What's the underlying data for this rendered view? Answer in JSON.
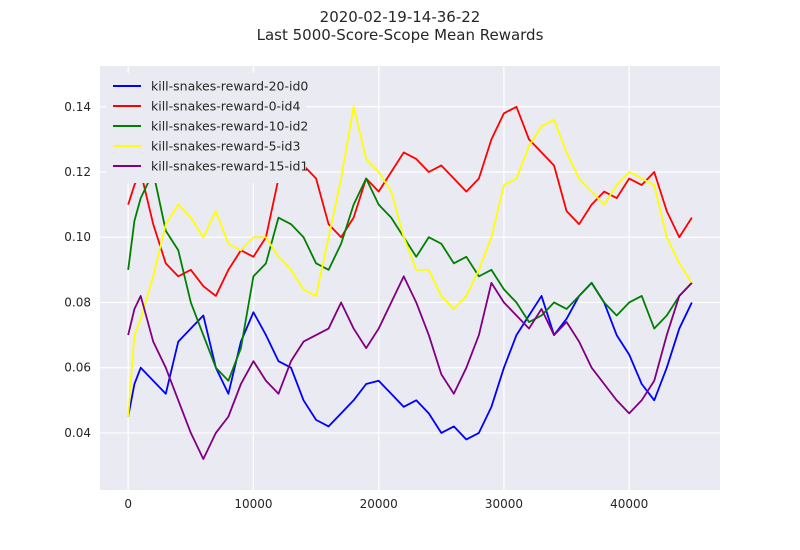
{
  "chart_data": {
    "type": "line",
    "title": [
      "2020-02-19-14-36-22",
      "Last 5000-Score-Scope Mean Rewards"
    ],
    "xlabel": "",
    "ylabel": "",
    "xlim": [
      -2250,
      47250
    ],
    "ylim": [
      0.0225,
      0.1525
    ],
    "x_ticks": [
      0,
      10000,
      20000,
      30000,
      40000
    ],
    "y_ticks": [
      0.04,
      0.06,
      0.08,
      0.1,
      0.12,
      0.14
    ],
    "x_tick_labels": [
      "0",
      "10000",
      "20000",
      "30000",
      "40000"
    ],
    "y_tick_labels": [
      "0.04",
      "0.06",
      "0.08",
      "0.10",
      "0.12",
      "0.14"
    ],
    "grid": true,
    "background": "#eaeaf2",
    "legend_position": "top-left",
    "series": [
      {
        "name": "kill-snakes-reward-20-id0",
        "color": "#0000ff",
        "x": [
          0,
          500,
          1000,
          2000,
          3000,
          4000,
          5000,
          6000,
          7000,
          8000,
          9000,
          10000,
          11000,
          12000,
          13000,
          14000,
          15000,
          16000,
          17000,
          18000,
          19000,
          20000,
          21000,
          22000,
          23000,
          24000,
          25000,
          26000,
          27000,
          28000,
          29000,
          30000,
          31000,
          32000,
          33000,
          34000,
          35000,
          36000,
          37000,
          38000,
          39000,
          40000,
          41000,
          42000,
          43000,
          44000,
          45000
        ],
        "y": [
          0.045,
          0.055,
          0.06,
          0.056,
          0.052,
          0.068,
          0.072,
          0.076,
          0.06,
          0.052,
          0.068,
          0.077,
          0.07,
          0.062,
          0.06,
          0.05,
          0.044,
          0.042,
          0.046,
          0.05,
          0.055,
          0.056,
          0.052,
          0.048,
          0.05,
          0.046,
          0.04,
          0.042,
          0.038,
          0.04,
          0.048,
          0.06,
          0.07,
          0.076,
          0.082,
          0.07,
          0.075,
          0.082,
          0.086,
          0.08,
          0.07,
          0.064,
          0.055,
          0.05,
          0.06,
          0.072,
          0.08
        ]
      },
      {
        "name": "kill-snakes-reward-0-id4",
        "color": "#ff0000",
        "x": [
          0,
          500,
          1000,
          2000,
          3000,
          4000,
          5000,
          6000,
          7000,
          8000,
          9000,
          10000,
          11000,
          12000,
          13000,
          14000,
          15000,
          16000,
          17000,
          18000,
          19000,
          20000,
          21000,
          22000,
          23000,
          24000,
          25000,
          26000,
          27000,
          28000,
          29000,
          30000,
          31000,
          32000,
          33000,
          34000,
          35000,
          36000,
          37000,
          38000,
          39000,
          40000,
          41000,
          42000,
          43000,
          44000,
          45000
        ],
        "y": [
          0.11,
          0.116,
          0.12,
          0.104,
          0.092,
          0.088,
          0.09,
          0.085,
          0.082,
          0.09,
          0.096,
          0.094,
          0.1,
          0.118,
          0.126,
          0.122,
          0.118,
          0.104,
          0.1,
          0.106,
          0.118,
          0.114,
          0.12,
          0.126,
          0.124,
          0.12,
          0.122,
          0.118,
          0.114,
          0.118,
          0.13,
          0.138,
          0.14,
          0.13,
          0.126,
          0.122,
          0.108,
          0.104,
          0.11,
          0.114,
          0.112,
          0.118,
          0.116,
          0.12,
          0.108,
          0.1,
          0.106
        ]
      },
      {
        "name": "kill-snakes-reward-10-id2",
        "color": "#008000",
        "x": [
          0,
          500,
          1000,
          2000,
          3000,
          4000,
          5000,
          6000,
          7000,
          8000,
          9000,
          10000,
          11000,
          12000,
          13000,
          14000,
          15000,
          16000,
          17000,
          18000,
          19000,
          20000,
          21000,
          22000,
          23000,
          24000,
          25000,
          26000,
          27000,
          28000,
          29000,
          30000,
          31000,
          32000,
          33000,
          34000,
          35000,
          36000,
          37000,
          38000,
          39000,
          40000,
          41000,
          42000,
          43000,
          44000,
          45000
        ],
        "y": [
          0.09,
          0.105,
          0.112,
          0.12,
          0.102,
          0.096,
          0.08,
          0.07,
          0.06,
          0.056,
          0.066,
          0.088,
          0.092,
          0.106,
          0.104,
          0.1,
          0.092,
          0.09,
          0.098,
          0.11,
          0.118,
          0.11,
          0.106,
          0.1,
          0.094,
          0.1,
          0.098,
          0.092,
          0.094,
          0.088,
          0.09,
          0.084,
          0.08,
          0.074,
          0.076,
          0.08,
          0.078,
          0.082,
          0.086,
          0.08,
          0.076,
          0.08,
          0.082,
          0.072,
          0.076,
          0.082,
          0.086
        ]
      },
      {
        "name": "kill-snakes-reward-5-id3",
        "color": "#ffff00",
        "x": [
          0,
          500,
          1000,
          2000,
          3000,
          4000,
          5000,
          6000,
          7000,
          8000,
          9000,
          10000,
          11000,
          12000,
          13000,
          14000,
          15000,
          16000,
          17000,
          18000,
          19000,
          20000,
          21000,
          22000,
          23000,
          24000,
          25000,
          26000,
          27000,
          28000,
          29000,
          30000,
          31000,
          32000,
          33000,
          34000,
          35000,
          36000,
          37000,
          38000,
          39000,
          40000,
          41000,
          42000,
          43000,
          44000,
          45000
        ],
        "y": [
          0.045,
          0.07,
          0.075,
          0.088,
          0.104,
          0.11,
          0.106,
          0.1,
          0.108,
          0.098,
          0.096,
          0.1,
          0.1,
          0.094,
          0.09,
          0.084,
          0.082,
          0.1,
          0.118,
          0.14,
          0.124,
          0.12,
          0.114,
          0.1,
          0.09,
          0.09,
          0.082,
          0.078,
          0.082,
          0.09,
          0.1,
          0.116,
          0.118,
          0.128,
          0.134,
          0.136,
          0.126,
          0.118,
          0.114,
          0.11,
          0.116,
          0.12,
          0.118,
          0.116,
          0.1,
          0.092,
          0.086
        ]
      },
      {
        "name": "kill-snakes-reward-15-id1",
        "color": "#800080",
        "x": [
          0,
          500,
          1000,
          2000,
          3000,
          4000,
          5000,
          6000,
          7000,
          8000,
          9000,
          10000,
          11000,
          12000,
          13000,
          14000,
          15000,
          16000,
          17000,
          18000,
          19000,
          20000,
          21000,
          22000,
          23000,
          24000,
          25000,
          26000,
          27000,
          28000,
          29000,
          30000,
          31000,
          32000,
          33000,
          34000,
          35000,
          36000,
          37000,
          38000,
          39000,
          40000,
          41000,
          42000,
          43000,
          44000,
          45000
        ],
        "y": [
          0.07,
          0.078,
          0.082,
          0.068,
          0.06,
          0.05,
          0.04,
          0.032,
          0.04,
          0.045,
          0.055,
          0.062,
          0.056,
          0.052,
          0.062,
          0.068,
          0.07,
          0.072,
          0.08,
          0.072,
          0.066,
          0.072,
          0.08,
          0.088,
          0.08,
          0.07,
          0.058,
          0.052,
          0.06,
          0.07,
          0.086,
          0.08,
          0.076,
          0.072,
          0.078,
          0.07,
          0.074,
          0.068,
          0.06,
          0.055,
          0.05,
          0.046,
          0.05,
          0.056,
          0.07,
          0.082,
          0.086
        ]
      }
    ]
  }
}
